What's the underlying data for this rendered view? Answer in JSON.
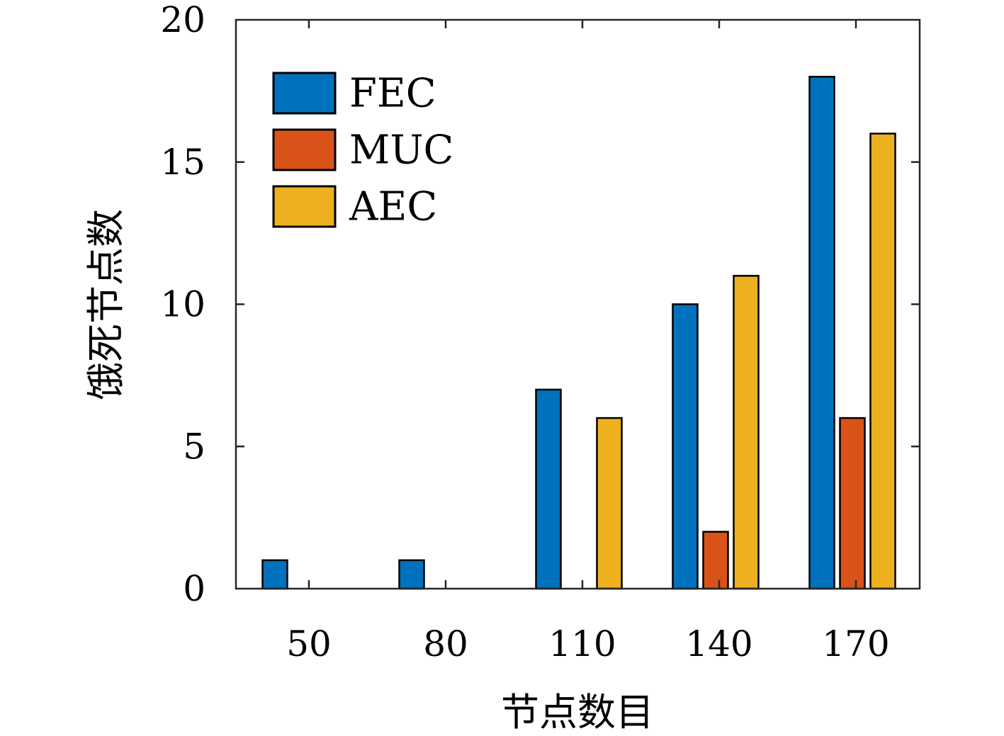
{
  "chart_data": {
    "type": "bar",
    "categories": [
      "50",
      "80",
      "110",
      "140",
      "170"
    ],
    "series": [
      {
        "name": "FEC",
        "color": "#0072BD",
        "values": [
          1,
          1,
          7,
          10,
          18
        ]
      },
      {
        "name": "MUC",
        "color": "#D95319",
        "values": [
          0,
          0,
          0,
          2,
          6
        ]
      },
      {
        "name": "AEC",
        "color": "#EDB120",
        "values": [
          0,
          0,
          6,
          11,
          16
        ]
      }
    ],
    "xlabel": "节点数目",
    "ylabel": "饿死节点数",
    "ylim": [
      0,
      20
    ],
    "yticks": [
      "0",
      "5",
      "10",
      "15",
      "20"
    ],
    "grid": false,
    "legend_position": "top-left"
  }
}
